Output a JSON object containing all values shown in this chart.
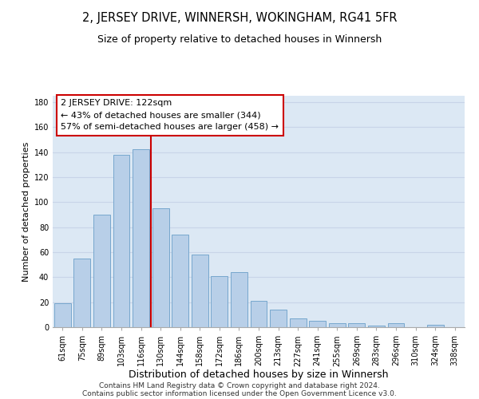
{
  "title": "2, JERSEY DRIVE, WINNERSH, WOKINGHAM, RG41 5FR",
  "subtitle": "Size of property relative to detached houses in Winnersh",
  "xlabel": "Distribution of detached houses by size in Winnersh",
  "ylabel": "Number of detached properties",
  "bar_labels": [
    "61sqm",
    "75sqm",
    "89sqm",
    "103sqm",
    "116sqm",
    "130sqm",
    "144sqm",
    "158sqm",
    "172sqm",
    "186sqm",
    "200sqm",
    "213sqm",
    "227sqm",
    "241sqm",
    "255sqm",
    "269sqm",
    "283sqm",
    "296sqm",
    "310sqm",
    "324sqm",
    "338sqm"
  ],
  "bar_values": [
    19,
    55,
    90,
    138,
    142,
    95,
    74,
    58,
    41,
    44,
    21,
    14,
    7,
    5,
    3,
    3,
    1,
    3,
    0,
    2,
    0
  ],
  "bar_color": "#b8cfe8",
  "bar_edge_color": "#6a9fc8",
  "property_line_x": 4.5,
  "property_line_color": "#cc0000",
  "annotation_line1": "2 JERSEY DRIVE: 122sqm",
  "annotation_line2": "← 43% of detached houses are smaller (344)",
  "annotation_line3": "57% of semi-detached houses are larger (458) →",
  "annotation_box_color": "#ffffff",
  "annotation_box_edge_color": "#cc0000",
  "ylim": [
    0,
    185
  ],
  "yticks": [
    0,
    20,
    40,
    60,
    80,
    100,
    120,
    140,
    160,
    180
  ],
  "grid_color": "#c8d4e8",
  "background_color": "#dce8f4",
  "footer_line1": "Contains HM Land Registry data © Crown copyright and database right 2024.",
  "footer_line2": "Contains public sector information licensed under the Open Government Licence v3.0.",
  "title_fontsize": 10.5,
  "subtitle_fontsize": 9,
  "xlabel_fontsize": 9,
  "ylabel_fontsize": 8,
  "tick_fontsize": 7,
  "annotation_fontsize": 8,
  "footer_fontsize": 6.5
}
